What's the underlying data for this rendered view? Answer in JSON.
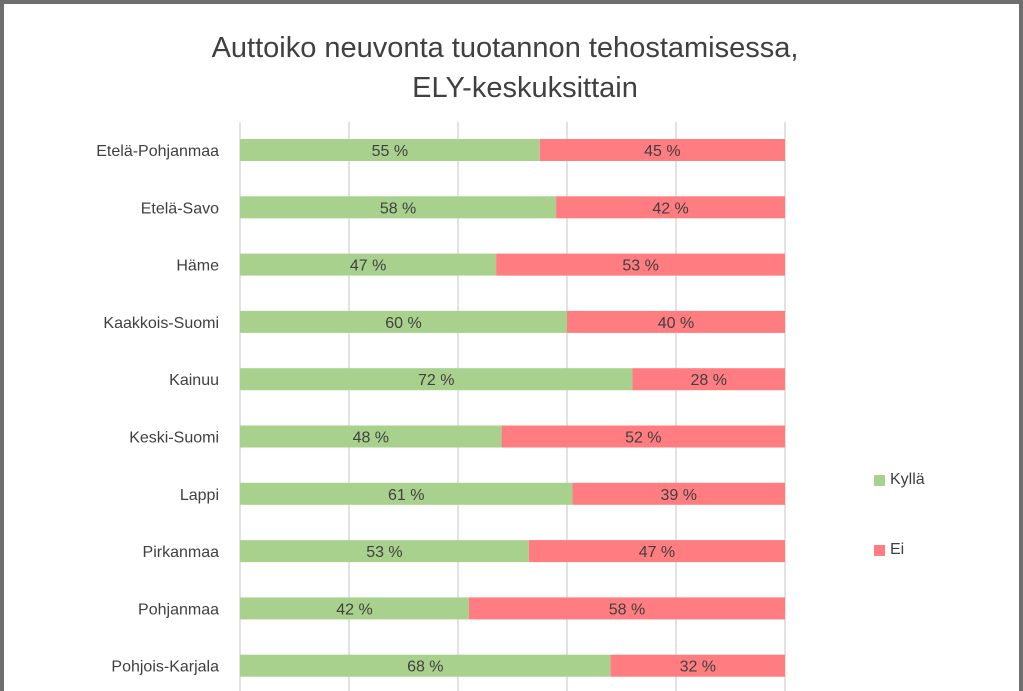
{
  "chart_data": {
    "type": "bar",
    "orientation": "horizontal",
    "stacked": "percent",
    "title_line1": "Auttoiko neuvonta tuotannon tehostamisessa,",
    "title_line2": "ELY-keskuksittain",
    "categories": [
      "Etelä-Pohjanmaa",
      "Etelä-Savo",
      "Häme",
      "Kaakkois-Suomi",
      "Kainuu",
      "Keski-Suomi",
      "Lappi",
      "Pirkanmaa",
      "Pohjanmaa",
      "Pohjois-Karjala"
    ],
    "series": [
      {
        "name": "Kyllä",
        "color": "#a9d18e",
        "values": [
          55,
          58,
          47,
          60,
          72,
          48,
          61,
          53,
          42,
          68
        ]
      },
      {
        "name": "Ei",
        "color": "#ff7c80",
        "values": [
          45,
          42,
          53,
          40,
          28,
          52,
          39,
          47,
          58,
          32
        ]
      }
    ],
    "data_labels": {
      "Kyllä": [
        "55 %",
        "58 %",
        "47 %",
        "60 %",
        "72 %",
        "48 %",
        "61 %",
        "53 %",
        "42 %",
        "68 %"
      ],
      "Ei": [
        "45 %",
        "42 %",
        "53 %",
        "40 %",
        "28 %",
        "52 %",
        "39 %",
        "47 %",
        "58 %",
        "32 %"
      ]
    },
    "xlim": [
      0,
      100
    ],
    "grid": true,
    "legend_position": "right"
  }
}
